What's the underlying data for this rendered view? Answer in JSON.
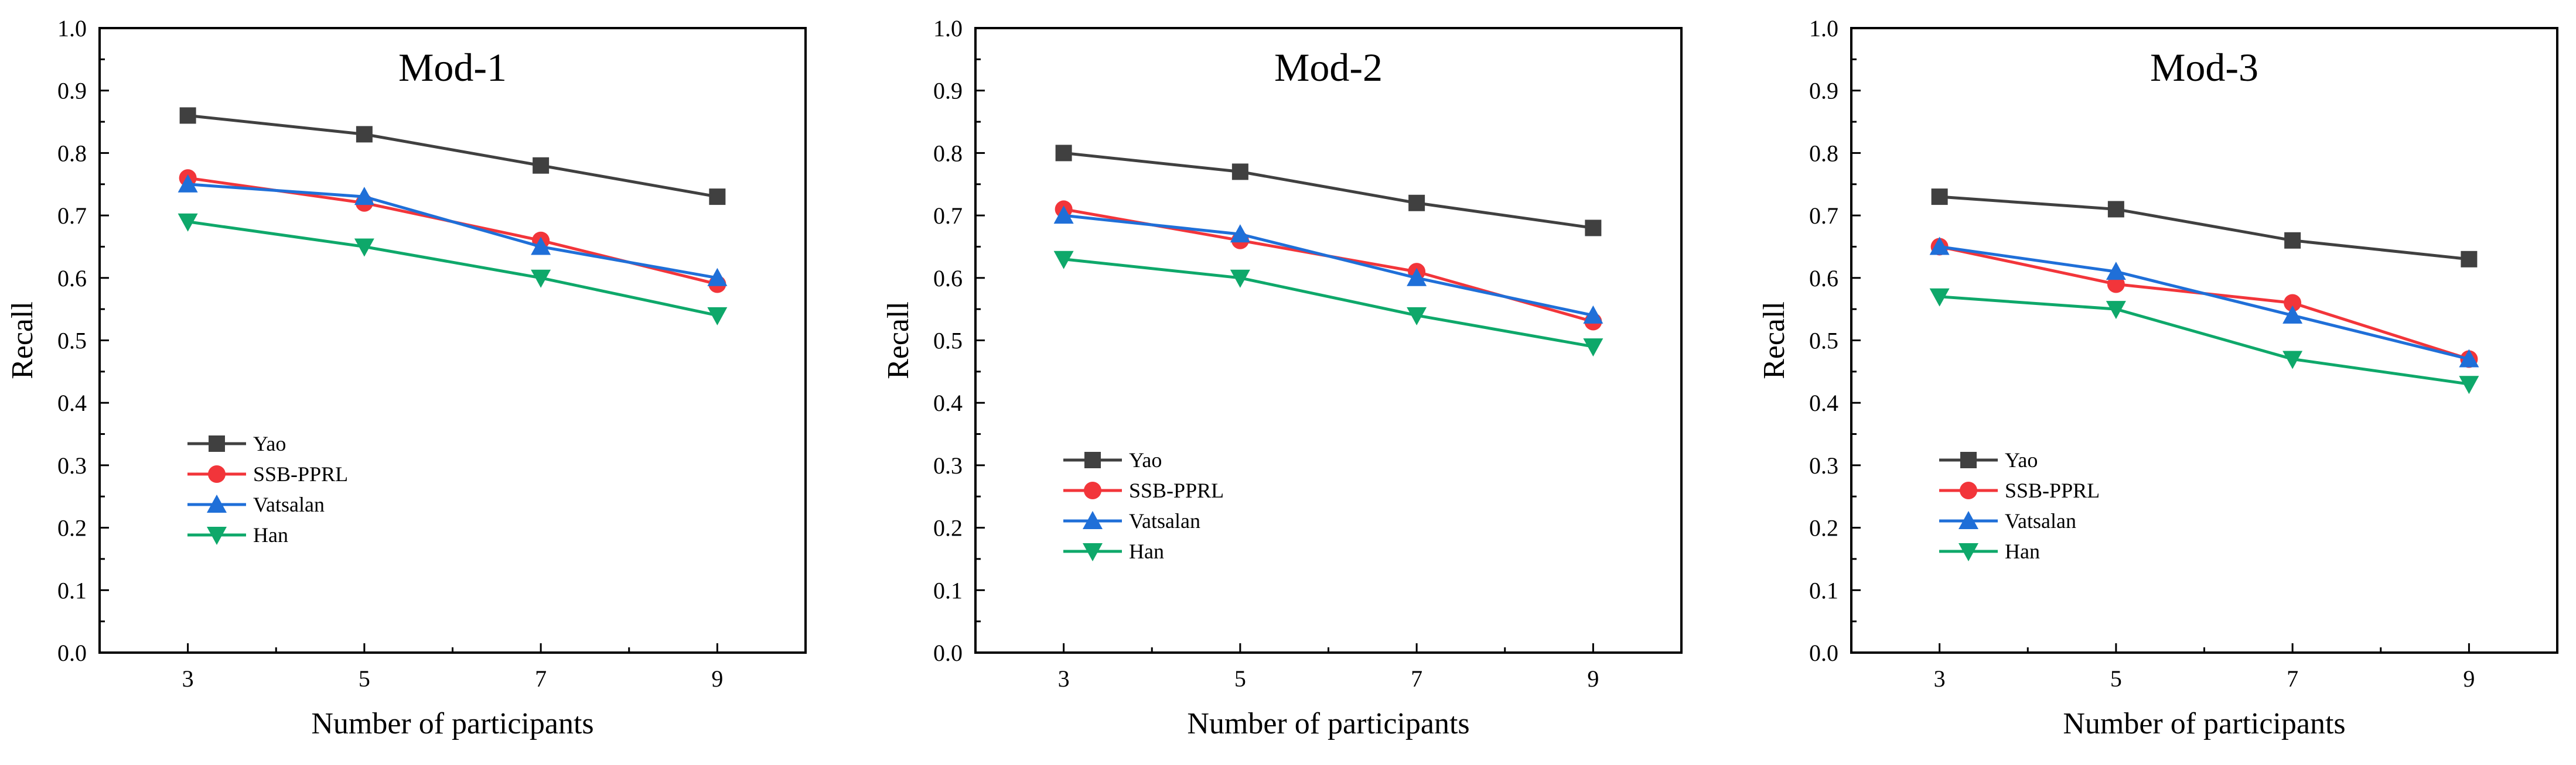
{
  "chart_data": [
    {
      "type": "line",
      "title": "Mod-1",
      "xlabel": "Number of participants",
      "ylabel": "Recall",
      "x": [
        3,
        5,
        7,
        9
      ],
      "xlim": [
        2,
        10
      ],
      "ylim": [
        0.0,
        1.0
      ],
      "xticks": [
        "3",
        "5",
        "7",
        "9"
      ],
      "yticks": [
        "0.0",
        "0.1",
        "0.2",
        "0.3",
        "0.4",
        "0.5",
        "0.6",
        "0.7",
        "0.8",
        "0.9",
        "1.0"
      ],
      "grid": false,
      "legend_position": "lower-left",
      "series": [
        {
          "name": "Yao",
          "values": [
            0.86,
            0.83,
            0.78,
            0.73
          ],
          "color": "#404040",
          "marker": "square"
        },
        {
          "name": "SSB-PPRL",
          "values": [
            0.76,
            0.72,
            0.66,
            0.59
          ],
          "color": "#f2353a",
          "marker": "circle"
        },
        {
          "name": "Vatsalan",
          "values": [
            0.75,
            0.73,
            0.65,
            0.6
          ],
          "color": "#1f6fd8",
          "marker": "triangle-up"
        },
        {
          "name": "Han",
          "values": [
            0.69,
            0.65,
            0.6,
            0.54
          ],
          "color": "#0ea86a",
          "marker": "triangle-down"
        }
      ]
    },
    {
      "type": "line",
      "title": "Mod-2",
      "xlabel": "Number of participants",
      "ylabel": "Recall",
      "x": [
        3,
        5,
        7,
        9
      ],
      "xlim": [
        2,
        10
      ],
      "ylim": [
        0.0,
        1.0
      ],
      "xticks": [
        "3",
        "5",
        "7",
        "9"
      ],
      "yticks": [
        "0.0",
        "0.1",
        "0.2",
        "0.3",
        "0.4",
        "0.5",
        "0.6",
        "0.7",
        "0.8",
        "0.9",
        "1.0"
      ],
      "grid": false,
      "legend_position": "lower-left",
      "series": [
        {
          "name": "Yao",
          "values": [
            0.8,
            0.77,
            0.72,
            0.68
          ],
          "color": "#404040",
          "marker": "square"
        },
        {
          "name": "SSB-PPRL",
          "values": [
            0.71,
            0.66,
            0.61,
            0.53
          ],
          "color": "#f2353a",
          "marker": "circle"
        },
        {
          "name": "Vatsalan",
          "values": [
            0.7,
            0.67,
            0.6,
            0.54
          ],
          "color": "#1f6fd8",
          "marker": "triangle-up"
        },
        {
          "name": "Han",
          "values": [
            0.63,
            0.6,
            0.54,
            0.49
          ],
          "color": "#0ea86a",
          "marker": "triangle-down"
        }
      ]
    },
    {
      "type": "line",
      "title": "Mod-3",
      "xlabel": "Number of participants",
      "ylabel": "Recall",
      "x": [
        3,
        5,
        7,
        9
      ],
      "xlim": [
        2,
        10
      ],
      "ylim": [
        0.0,
        1.0
      ],
      "xticks": [
        "3",
        "5",
        "7",
        "9"
      ],
      "yticks": [
        "0.0",
        "0.1",
        "0.2",
        "0.3",
        "0.4",
        "0.5",
        "0.6",
        "0.7",
        "0.8",
        "0.9",
        "1.0"
      ],
      "grid": false,
      "legend_position": "lower-left",
      "series": [
        {
          "name": "Yao",
          "values": [
            0.73,
            0.71,
            0.66,
            0.63
          ],
          "color": "#404040",
          "marker": "square"
        },
        {
          "name": "SSB-PPRL",
          "values": [
            0.65,
            0.59,
            0.56,
            0.47
          ],
          "color": "#f2353a",
          "marker": "circle"
        },
        {
          "name": "Vatsalan",
          "values": [
            0.65,
            0.61,
            0.54,
            0.47
          ],
          "color": "#1f6fd8",
          "marker": "triangle-up"
        },
        {
          "name": "Han",
          "values": [
            0.57,
            0.55,
            0.47,
            0.43
          ],
          "color": "#0ea86a",
          "marker": "triangle-down"
        }
      ]
    }
  ]
}
